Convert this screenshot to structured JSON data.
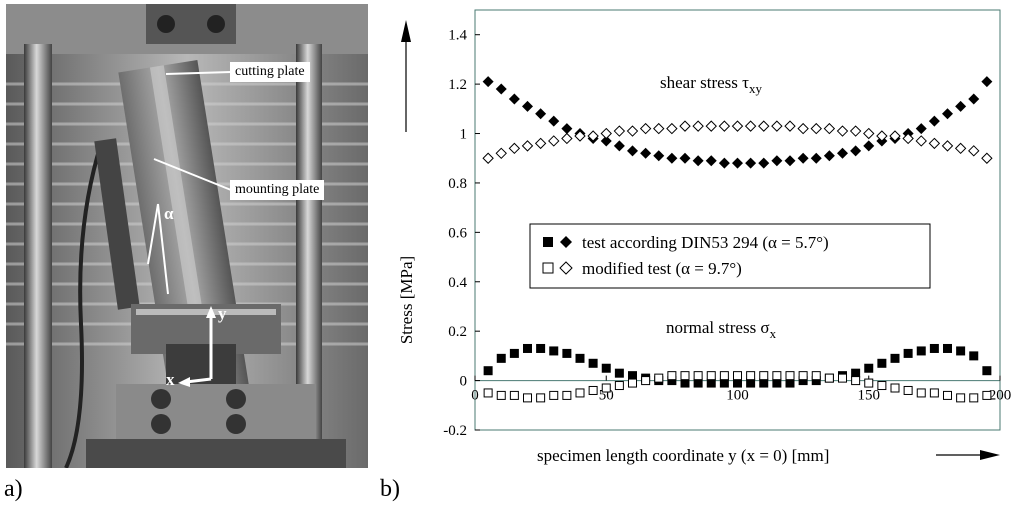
{
  "panels": {
    "a_label": "a)",
    "b_label": "b)"
  },
  "photo": {
    "callouts": {
      "cutting_plate": "cutting plate",
      "mounting_plate": "mounting plate"
    },
    "angle_symbol": "α",
    "axis_x": "x",
    "axis_y": "y"
  },
  "chart_data": {
    "type": "scatter",
    "ylabel": "Stress [MPa]",
    "xlabel": "specimen length coordinate y (x = 0) [mm]",
    "xlim": [
      0,
      200
    ],
    "ylim": [
      -0.2,
      1.5
    ],
    "x_ticks": [
      0,
      50,
      100,
      150,
      200
    ],
    "y_ticks": [
      -0.2,
      0,
      0.2,
      0.4,
      0.6,
      0.8,
      1,
      1.2,
      1.4
    ],
    "x_tick_labels": [
      "0",
      "50",
      "100",
      "150",
      "200"
    ],
    "y_tick_labels": [
      "-0.2",
      "0",
      "0.2",
      "0.4",
      "0.6",
      "0.8",
      "1",
      "1.2",
      "1.4"
    ],
    "grid": false,
    "legend_placement": "center",
    "legend": [
      {
        "markers": "■ ◆",
        "label": "test according DIN53 294 (α = 5.7°)"
      },
      {
        "markers": "□ ◇",
        "label": "modified test (α = 9.7°)"
      }
    ],
    "annotations": {
      "shear_prefix": "shear stress τ",
      "shear_sub": "xy",
      "normal_prefix": "normal stress σ",
      "normal_sub": "x"
    },
    "series": [
      {
        "group": "shear stress",
        "marker": "filled-diamond",
        "x": [
          5,
          10,
          15,
          20,
          25,
          30,
          35,
          40,
          45,
          50,
          55,
          60,
          65,
          70,
          75,
          80,
          85,
          90,
          95,
          100,
          105,
          110,
          115,
          120,
          125,
          130,
          135,
          140,
          145,
          150,
          155,
          160,
          165,
          170,
          175,
          180,
          185,
          190,
          195
        ],
        "y": [
          1.21,
          1.18,
          1.14,
          1.11,
          1.08,
          1.05,
          1.02,
          1.0,
          0.98,
          0.97,
          0.95,
          0.93,
          0.92,
          0.91,
          0.9,
          0.9,
          0.89,
          0.89,
          0.88,
          0.88,
          0.88,
          0.88,
          0.89,
          0.89,
          0.9,
          0.9,
          0.91,
          0.92,
          0.93,
          0.95,
          0.97,
          0.98,
          1.0,
          1.02,
          1.05,
          1.08,
          1.11,
          1.14,
          1.21
        ]
      },
      {
        "group": "shear stress",
        "marker": "open-diamond",
        "x": [
          5,
          10,
          15,
          20,
          25,
          30,
          35,
          40,
          45,
          50,
          55,
          60,
          65,
          70,
          75,
          80,
          85,
          90,
          95,
          100,
          105,
          110,
          115,
          120,
          125,
          130,
          135,
          140,
          145,
          150,
          155,
          160,
          165,
          170,
          175,
          180,
          185,
          190,
          195
        ],
        "y": [
          0.9,
          0.92,
          0.94,
          0.95,
          0.96,
          0.97,
          0.98,
          0.99,
          0.99,
          1.0,
          1.01,
          1.01,
          1.02,
          1.02,
          1.02,
          1.03,
          1.03,
          1.03,
          1.03,
          1.03,
          1.03,
          1.03,
          1.03,
          1.03,
          1.02,
          1.02,
          1.02,
          1.01,
          1.01,
          1.0,
          0.99,
          0.99,
          0.98,
          0.97,
          0.96,
          0.95,
          0.94,
          0.93,
          0.9
        ]
      },
      {
        "group": "normal stress",
        "marker": "filled-square",
        "x": [
          5,
          10,
          15,
          20,
          25,
          30,
          35,
          40,
          45,
          50,
          55,
          60,
          65,
          70,
          75,
          80,
          85,
          90,
          95,
          100,
          105,
          110,
          115,
          120,
          125,
          130,
          135,
          140,
          145,
          150,
          155,
          160,
          165,
          170,
          175,
          180,
          185,
          190,
          195
        ],
        "y": [
          0.04,
          0.09,
          0.11,
          0.13,
          0.13,
          0.12,
          0.11,
          0.09,
          0.07,
          0.05,
          0.03,
          0.02,
          0.01,
          0.0,
          0.0,
          -0.01,
          -0.01,
          -0.01,
          -0.01,
          -0.01,
          -0.01,
          -0.01,
          -0.01,
          -0.01,
          0.0,
          0.0,
          0.01,
          0.02,
          0.03,
          0.05,
          0.07,
          0.09,
          0.11,
          0.12,
          0.13,
          0.13,
          0.12,
          0.1,
          0.04
        ]
      },
      {
        "group": "normal stress",
        "marker": "open-square",
        "x": [
          5,
          10,
          15,
          20,
          25,
          30,
          35,
          40,
          45,
          50,
          55,
          60,
          65,
          70,
          75,
          80,
          85,
          90,
          95,
          100,
          105,
          110,
          115,
          120,
          125,
          130,
          135,
          140,
          145,
          150,
          155,
          160,
          165,
          170,
          175,
          180,
          185,
          190,
          195
        ],
        "y": [
          -0.05,
          -0.06,
          -0.06,
          -0.07,
          -0.07,
          -0.06,
          -0.06,
          -0.05,
          -0.04,
          -0.03,
          -0.02,
          -0.01,
          0.0,
          0.01,
          0.02,
          0.02,
          0.02,
          0.02,
          0.02,
          0.02,
          0.02,
          0.02,
          0.02,
          0.02,
          0.02,
          0.02,
          0.01,
          0.01,
          0.0,
          -0.01,
          -0.02,
          -0.03,
          -0.04,
          -0.05,
          -0.05,
          -0.06,
          -0.07,
          -0.07,
          -0.06
        ]
      }
    ]
  }
}
